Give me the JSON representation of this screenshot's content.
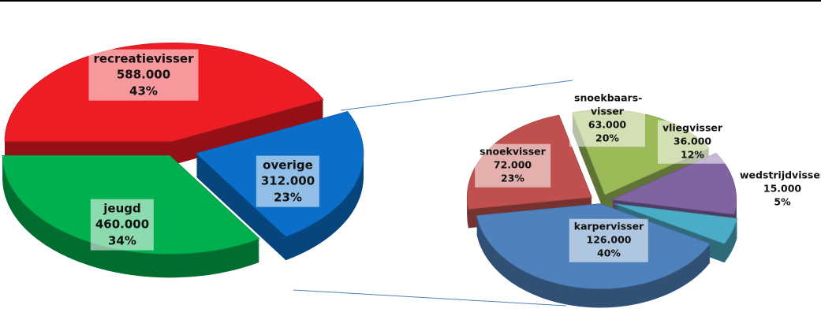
{
  "chart_data": [
    {
      "type": "pie",
      "categories": [
        "recreatievisser",
        "overige",
        "jeugd"
      ],
      "values": [
        588000,
        312000,
        460000
      ],
      "value_labels": [
        "588.000",
        "312.000",
        "460.000"
      ],
      "percents": [
        43,
        23,
        34
      ],
      "percent_labels": [
        "43%",
        "23%",
        "34%"
      ],
      "colors": [
        "#ee1c24",
        "#0b6fca",
        "#00b04f"
      ]
    },
    {
      "type": "pie",
      "categories": [
        "karpervisser",
        "snoekvisser",
        "snoekbaars-visser",
        "vliegvisser",
        "wedstrijdvisser"
      ],
      "values": [
        126000,
        72000,
        63000,
        36000,
        15000
      ],
      "value_labels": [
        "126.000",
        "72.000",
        "63.000",
        "36.000",
        "15.000"
      ],
      "percents": [
        40,
        23,
        20,
        12,
        5
      ],
      "percent_labels": [
        "40%",
        "23%",
        "20%",
        "12%",
        "5%"
      ],
      "colors": [
        "#4f81bd",
        "#c0504d",
        "#9bbb59",
        "#8064a2",
        "#4bacc6"
      ]
    }
  ]
}
